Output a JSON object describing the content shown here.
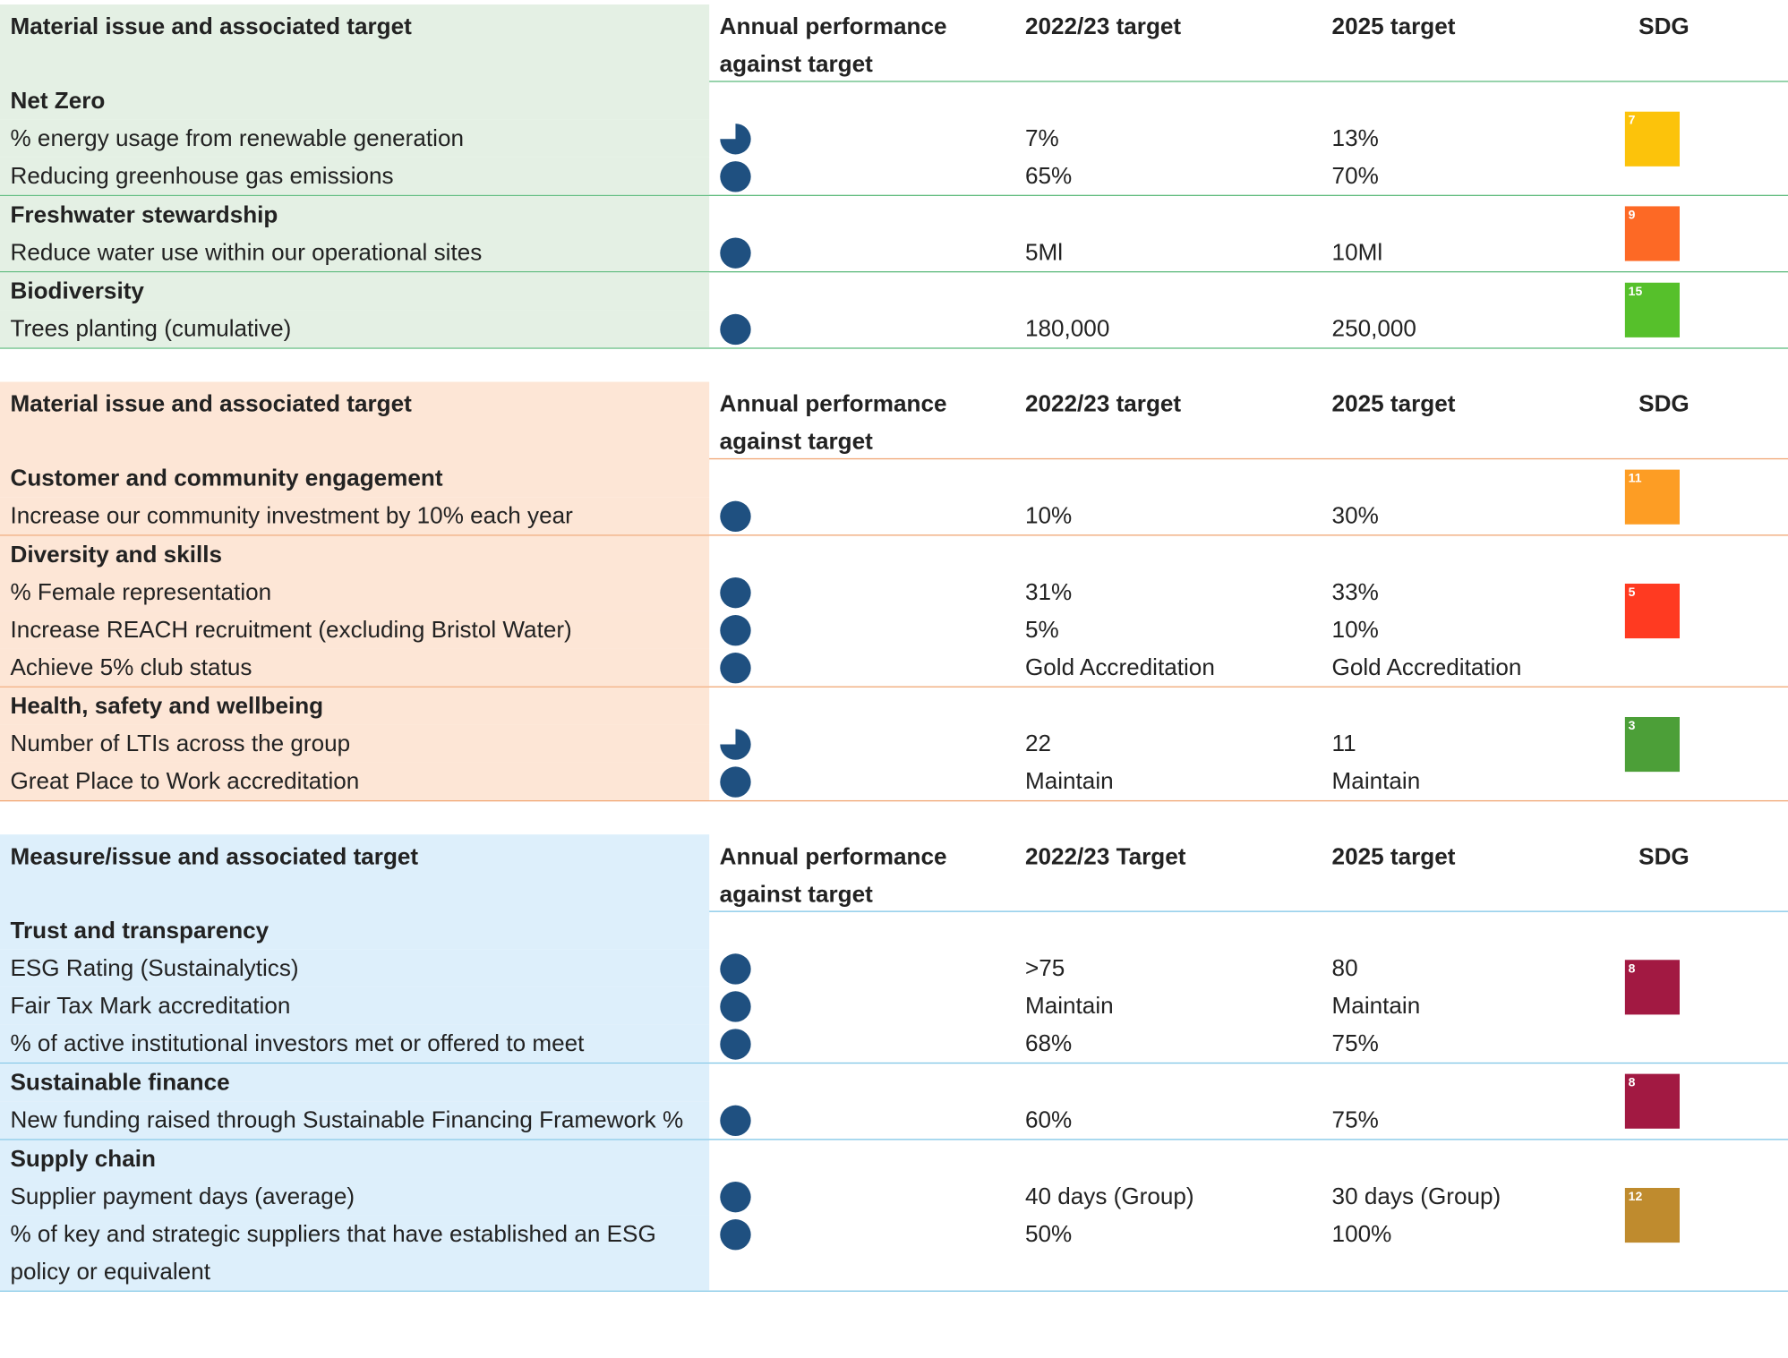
{
  "tables": [
    {
      "theme": "green",
      "header": [
        "Material issue and associated target",
        "Annual performance against target",
        "2022/23 target",
        "2025 target",
        "SDG"
      ],
      "groups": [
        {
          "title": "Net Zero",
          "sdg": 7,
          "rows": [
            {
              "label": "% energy usage from renewable generation",
              "performance": "three-quarter",
              "target_2223": "7%",
              "target_2025": "13%"
            },
            {
              "label": "Reducing greenhouse gas emissions",
              "performance": "full",
              "target_2223": "65%",
              "target_2025": "70%"
            }
          ]
        },
        {
          "title": "Freshwater stewardship",
          "sdg": 9,
          "rows": [
            {
              "label": "Reduce water use within our operational sites",
              "performance": "full",
              "target_2223": "5Ml",
              "target_2025": "10Ml"
            }
          ]
        },
        {
          "title": "Biodiversity",
          "sdg": 15,
          "rows": [
            {
              "label": "Trees planting (cumulative)",
              "performance": "full",
              "target_2223": "180,000",
              "target_2025": "250,000"
            }
          ]
        }
      ]
    },
    {
      "theme": "orange",
      "header": [
        "Material issue and associated target",
        "Annual performance against target",
        "2022/23 target",
        "2025 target",
        "SDG"
      ],
      "groups": [
        {
          "title": "Customer and community engagement",
          "sdg": 11,
          "rows": [
            {
              "label": "Increase our community investment by 10% each year",
              "performance": "full",
              "target_2223": "10%",
              "target_2025": "30%"
            }
          ]
        },
        {
          "title": "Diversity and skills",
          "sdg": 5,
          "rows": [
            {
              "label": "% Female representation",
              "performance": "full",
              "target_2223": "31%",
              "target_2025": "33%"
            },
            {
              "label": "Increase REACH recruitment (excluding Bristol Water)",
              "performance": "full",
              "target_2223": "5%",
              "target_2025": "10%"
            },
            {
              "label": "Achieve 5% club status",
              "performance": "full",
              "target_2223": "Gold Accreditation",
              "target_2025": "Gold Accreditation"
            }
          ]
        },
        {
          "title": "Health, safety and wellbeing",
          "sdg": 3,
          "rows": [
            {
              "label": "Number of LTIs across the group",
              "performance": "three-quarter",
              "target_2223": "22",
              "target_2025": "11"
            },
            {
              "label": "Great Place to Work accreditation",
              "performance": "full",
              "target_2223": "Maintain",
              "target_2025": "Maintain"
            }
          ]
        }
      ]
    },
    {
      "theme": "blue",
      "header": [
        "Measure/issue and associated target",
        "Annual performance against target",
        "2022/23 Target",
        "2025 target",
        "SDG"
      ],
      "groups": [
        {
          "title": "Trust and transparency",
          "sdg": 8,
          "rows": [
            {
              "label": "ESG Rating (Sustainalytics)",
              "performance": "full",
              "target_2223": ">75",
              "target_2025": "80"
            },
            {
              "label": "Fair Tax Mark accreditation",
              "performance": "full",
              "target_2223": "Maintain",
              "target_2025": "Maintain"
            },
            {
              "label": "% of active institutional investors met or offered to meet",
              "performance": "full",
              "target_2223": "68%",
              "target_2025": "75%"
            }
          ]
        },
        {
          "title": "Sustainable finance",
          "sdg": 8,
          "rows": [
            {
              "label": "New funding raised through Sustainable Financing Framework %",
              "performance": "full",
              "target_2223": "60%",
              "target_2025": "75%"
            }
          ]
        },
        {
          "title": "Supply chain",
          "sdg": 12,
          "rows": [
            {
              "label": "Supplier payment days (average)",
              "performance": "full",
              "target_2223": "40 days (Group)",
              "target_2025": "30 days (Group)"
            },
            {
              "label": "% of key and strategic suppliers that have established an ESG policy or equivalent",
              "performance": "full",
              "target_2223": "50%",
              "target_2025": "100%"
            }
          ]
        }
      ]
    }
  ]
}
